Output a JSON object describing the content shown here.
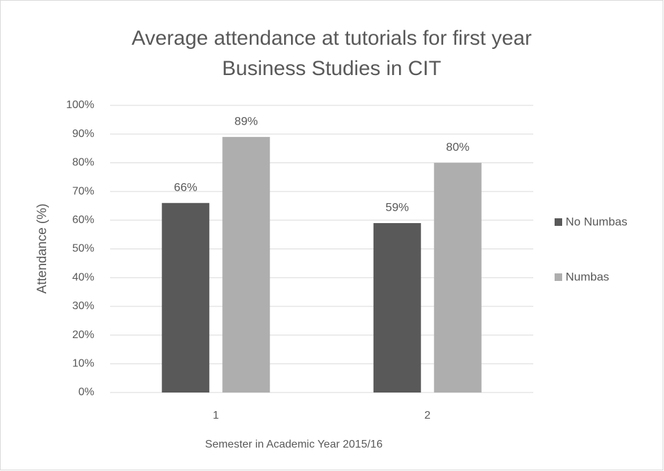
{
  "chart_data": {
    "type": "bar",
    "title": "Average attendance at tutorials for first year Business Studies in CIT",
    "x_label": "Semester  in Academic Year 2015/16",
    "y_label": "Attendance (%)",
    "categories": [
      "1",
      "2"
    ],
    "series": [
      {
        "name": "No Numbas",
        "color": "#595959",
        "values": [
          66,
          59
        ],
        "value_labels": [
          "66%",
          "59%"
        ]
      },
      {
        "name": "Numbas",
        "color": "#aeaeae",
        "values": [
          89,
          80
        ],
        "value_labels": [
          "89%",
          "80%"
        ]
      }
    ],
    "ylim": [
      0,
      100
    ],
    "yticks": [
      {
        "value": 0,
        "label": "0%"
      },
      {
        "value": 10,
        "label": "10%"
      },
      {
        "value": 20,
        "label": "20%"
      },
      {
        "value": 30,
        "label": "30%"
      },
      {
        "value": 40,
        "label": "40%"
      },
      {
        "value": 50,
        "label": "50%"
      },
      {
        "value": 60,
        "label": "60%"
      },
      {
        "value": 70,
        "label": "70%"
      },
      {
        "value": 80,
        "label": "80%"
      },
      {
        "value": 90,
        "label": "90%"
      },
      {
        "value": 100,
        "label": "100%"
      }
    ],
    "grid": true,
    "legend": "right"
  }
}
